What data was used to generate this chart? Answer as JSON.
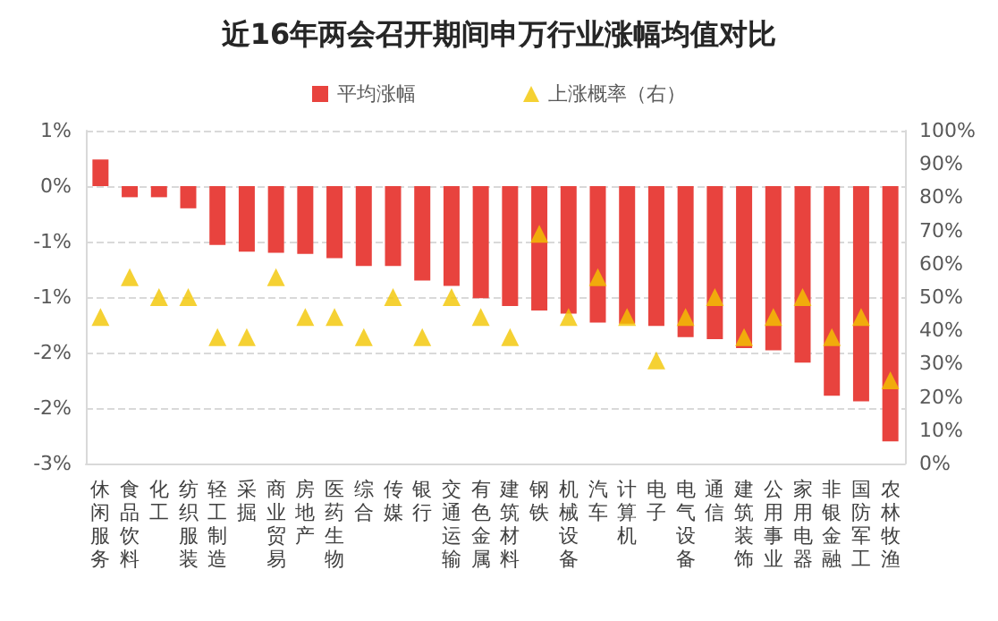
{
  "chart_data": {
    "type": "bar",
    "title": "近16年两会召开期间申万行业涨幅均值对比",
    "categories": [
      "休闲服务",
      "食品饮料",
      "化工",
      "纺织服装",
      "轻工制造",
      "采掘",
      "商业贸易",
      "房地产",
      "医药生物",
      "综合",
      "传媒",
      "银行",
      "交通运输",
      "有色金属",
      "建筑材料",
      "钢铁",
      "机械设备",
      "汽车",
      "计算机",
      "电子",
      "电气设备",
      "通信",
      "建筑装饰",
      "公用事业",
      "家用电器",
      "非银金融",
      "国防军工",
      "农林牧渔"
    ],
    "series": [
      {
        "name": "平均涨幅",
        "color": "#e8433e",
        "values": [
          0.24,
          -0.1,
          -0.1,
          -0.2,
          -0.53,
          -0.59,
          -0.6,
          -0.61,
          -0.65,
          -0.72,
          -0.72,
          -0.85,
          -0.9,
          -1.01,
          -1.08,
          -1.12,
          -1.15,
          -1.23,
          -1.24,
          -1.26,
          -1.36,
          -1.38,
          -1.46,
          -1.48,
          -1.59,
          -1.89,
          -1.94,
          -2.3
        ]
      },
      {
        "name": "上涨概率（右）",
        "type": "scatter",
        "axis": "y2",
        "color": "#f2c500",
        "marker": "triangle",
        "values": [
          44,
          56,
          50,
          50,
          38,
          38,
          56,
          44,
          44,
          38,
          50,
          38,
          50,
          44,
          38,
          69,
          44,
          56,
          44,
          31,
          44,
          50,
          38,
          44,
          50,
          38,
          44,
          25
        ]
      }
    ],
    "ylim": [
      -2.5,
      0.5
    ],
    "yticks": [
      {
        "value": -2.5,
        "label": "-3%"
      },
      {
        "value": -2,
        "label": "-2%"
      },
      {
        "value": -1.5,
        "label": "-2%"
      },
      {
        "value": -1,
        "label": "-1%"
      },
      {
        "value": -0.5,
        "label": "-1%"
      },
      {
        "value": 0,
        "label": "0%"
      },
      {
        "value": 0.5,
        "label": "1%"
      }
    ],
    "y2lim": [
      0,
      100
    ],
    "y2ticks": [
      {
        "value": 0,
        "label": "0%"
      },
      {
        "value": 10,
        "label": "10%"
      },
      {
        "value": 20,
        "label": "20%"
      },
      {
        "value": 30,
        "label": "30%"
      },
      {
        "value": 40,
        "label": "40%"
      },
      {
        "value": 50,
        "label": "50%"
      },
      {
        "value": 60,
        "label": "60%"
      },
      {
        "value": 70,
        "label": "70%"
      },
      {
        "value": 80,
        "label": "80%"
      },
      {
        "value": 90,
        "label": "90%"
      },
      {
        "value": 100,
        "label": "100%"
      }
    ],
    "grid": "y",
    "legend": "top"
  }
}
